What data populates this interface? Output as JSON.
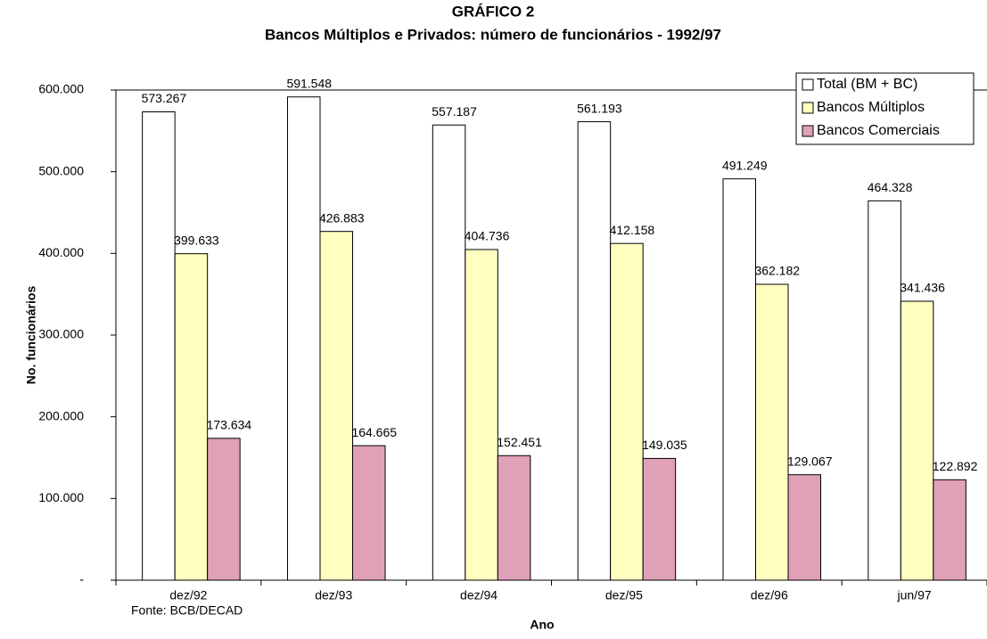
{
  "chart_data": {
    "type": "bar",
    "title": "GRÁFICO 2",
    "subtitle": "Bancos Múltiplos e Privados: número de funcionários - 1992/97",
    "y_label": "No. funcionários",
    "x_label": "Ano",
    "source": "Fonte: BCB/DECAD",
    "categories": [
      "dez/92",
      "dez/93",
      "dez/94",
      "dez/95",
      "dez/96",
      "jun/97"
    ],
    "series": [
      {
        "name": "Total (BM + BC)",
        "color": "#ffffff",
        "values": [
          573267,
          591548,
          557187,
          561193,
          491249,
          464328
        ],
        "value_labels": [
          "573.267",
          "591.548",
          "557.187",
          "561.193",
          "491.249",
          "464.328"
        ]
      },
      {
        "name": "Bancos Múltiplos",
        "color": "#ffffc0",
        "values": [
          399633,
          426883,
          404736,
          412158,
          362182,
          341436
        ],
        "value_labels": [
          "399.633",
          "426.883",
          "404.736",
          "412.158",
          "362.182",
          "341.436"
        ]
      },
      {
        "name": "Bancos Comerciais",
        "color": "#dfa0b8",
        "values": [
          173634,
          164665,
          152451,
          149035,
          129067,
          122892
        ],
        "value_labels": [
          "173.634",
          "164.665",
          "152.451",
          "149.035",
          "129.067",
          "122.892"
        ]
      }
    ],
    "ylim": [
      0,
      600000
    ],
    "yticks": [
      {
        "value": 0,
        "label": "-"
      },
      {
        "value": 100000,
        "label": "100.000"
      },
      {
        "value": 200000,
        "label": "200.000"
      },
      {
        "value": 300000,
        "label": "300.000"
      },
      {
        "value": 400000,
        "label": "400.000"
      },
      {
        "value": 500000,
        "label": "500.000"
      },
      {
        "value": 600000,
        "label": "600.000"
      }
    ],
    "legend": "top-right"
  }
}
